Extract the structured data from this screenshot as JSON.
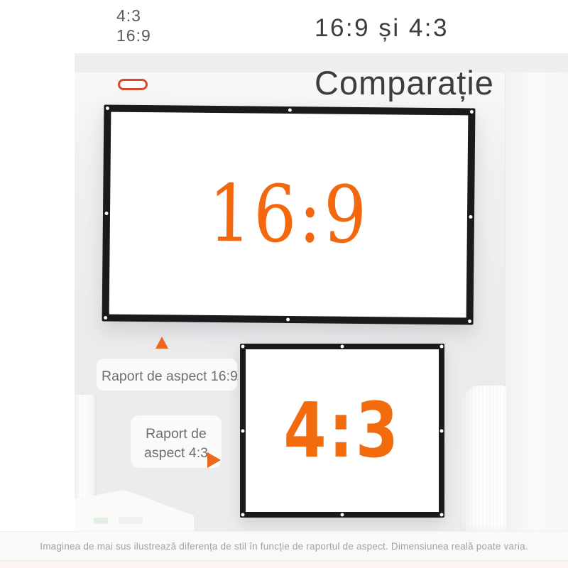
{
  "colors": {
    "accent_orange": "#f3680f",
    "strap_red": "#d84a2c",
    "frame_black": "#1a1a1a",
    "title_gray": "#3d3d3d",
    "badge_gray": "#595959",
    "label_gray": "#6f6f73",
    "note_gray": "#a2a2a3"
  },
  "corner_badge": {
    "line1": "4:3",
    "line2": "16:9"
  },
  "header": {
    "subtitle": "16:9 și 4:3",
    "title": "Comparație"
  },
  "icons": {
    "strap_hook": "strap-hook-icon",
    "pointer_up": "triangle-up-icon",
    "pointer_right": "triangle-right-icon",
    "grommet": "grommet-dot"
  },
  "screens": {
    "large": {
      "ratio": "16:9",
      "caption": "Raport de aspect 16:9"
    },
    "small": {
      "ratio": "4:3",
      "caption_line1": "Raport de",
      "caption_line2": "aspect 4:3"
    }
  },
  "footer": {
    "disclaimer": "Imaginea de mai sus ilustrează diferența de stil în funcție de raportul de aspect. Dimensiunea reală poate varia."
  }
}
